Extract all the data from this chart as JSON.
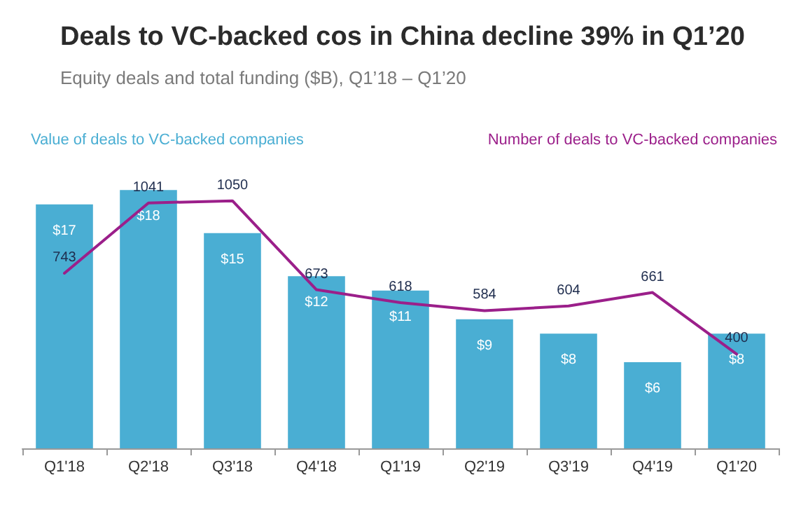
{
  "chart_data": {
    "type": "bar",
    "title": "Deals to VC-backed cos in China decline 39% in Q1’20",
    "subtitle": "Equity deals and total funding ($B), Q1’18 – Q1’20",
    "categories": [
      "Q1'18",
      "Q2'18",
      "Q3'18",
      "Q4'18",
      "Q1'19",
      "Q2'19",
      "Q3'19",
      "Q4'19",
      "Q1'20"
    ],
    "series": [
      {
        "name": "Value of deals to VC-backed companies",
        "color": "#4aaed3",
        "values": [
          17,
          18,
          15,
          12,
          11,
          9,
          8,
          6,
          8
        ],
        "value_labels": [
          "$17",
          "$18",
          "$15",
          "$12",
          "$11",
          "$9",
          "$8",
          "$6",
          "$8"
        ]
      },
      {
        "name": "Number of deals to VC-backed companies",
        "type": "line",
        "axis": "y2",
        "color": "#9b1f8a",
        "values": [
          743,
          1041,
          1050,
          673,
          618,
          584,
          604,
          661,
          400
        ],
        "value_labels": [
          "743",
          "1041",
          "1050",
          "673",
          "618",
          "584",
          "604",
          "661",
          "400"
        ]
      }
    ],
    "legend": "top",
    "marker": "none",
    "line_style": "solid"
  }
}
